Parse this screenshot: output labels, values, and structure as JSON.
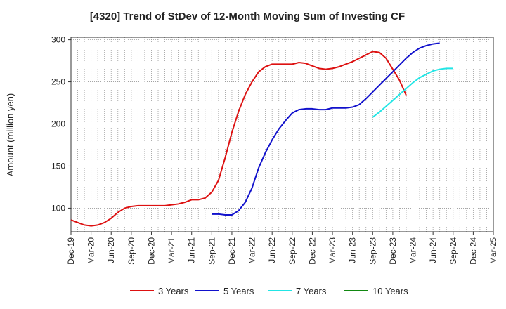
{
  "chart_data": {
    "type": "line",
    "title": "[4320]  Trend of StDev of 12-Month Moving Sum of Investing CF",
    "xlabel": "",
    "ylabel": "Amount (million yen)",
    "ylim": [
      72,
      303
    ],
    "yticks": [
      100,
      150,
      200,
      250,
      300
    ],
    "x_tick_labels": [
      "Dec-19",
      "Mar-20",
      "Jun-20",
      "Sep-20",
      "Dec-20",
      "Mar-21",
      "Jun-21",
      "Sep-21",
      "Dec-21",
      "Mar-22",
      "Jun-22",
      "Sep-22",
      "Dec-22",
      "Mar-23",
      "Jun-23",
      "Sep-23",
      "Dec-23",
      "Mar-24",
      "Jun-24",
      "Sep-24",
      "Dec-24",
      "Mar-25"
    ],
    "grid": true,
    "legend_position": "bottom",
    "series": [
      {
        "name": "3 Years",
        "color": "#dd1111",
        "start": "Dec-19",
        "values": [
          86,
          83,
          80,
          79,
          80,
          83,
          88,
          95,
          100,
          102,
          103,
          103,
          103,
          103,
          103,
          104,
          105,
          107,
          110,
          110,
          112,
          119,
          133,
          160,
          190,
          215,
          235,
          250,
          262,
          268,
          271,
          271,
          271,
          271,
          273,
          272,
          269,
          266,
          265,
          266,
          268,
          271,
          274,
          278,
          282,
          286,
          285,
          278,
          265,
          252,
          234
        ]
      },
      {
        "name": "5 Years",
        "color": "#1111cc",
        "start": "Sep-21",
        "values": [
          93,
          93,
          92,
          92,
          97,
          107,
          124,
          148,
          166,
          181,
          194,
          204,
          213,
          217,
          218,
          218,
          217,
          217,
          219,
          219,
          219,
          220,
          223,
          230,
          238,
          246,
          254,
          262,
          270,
          278,
          285,
          290,
          293,
          295,
          296
        ]
      },
      {
        "name": "7 Years",
        "color": "#22e5e5",
        "start": "Sep-23",
        "values": [
          208,
          214,
          221,
          228,
          235,
          242,
          249,
          255,
          259,
          263,
          265,
          266,
          266
        ]
      },
      {
        "name": "10 Years",
        "color": "#118811",
        "start": "Sep-24",
        "values": []
      }
    ]
  }
}
